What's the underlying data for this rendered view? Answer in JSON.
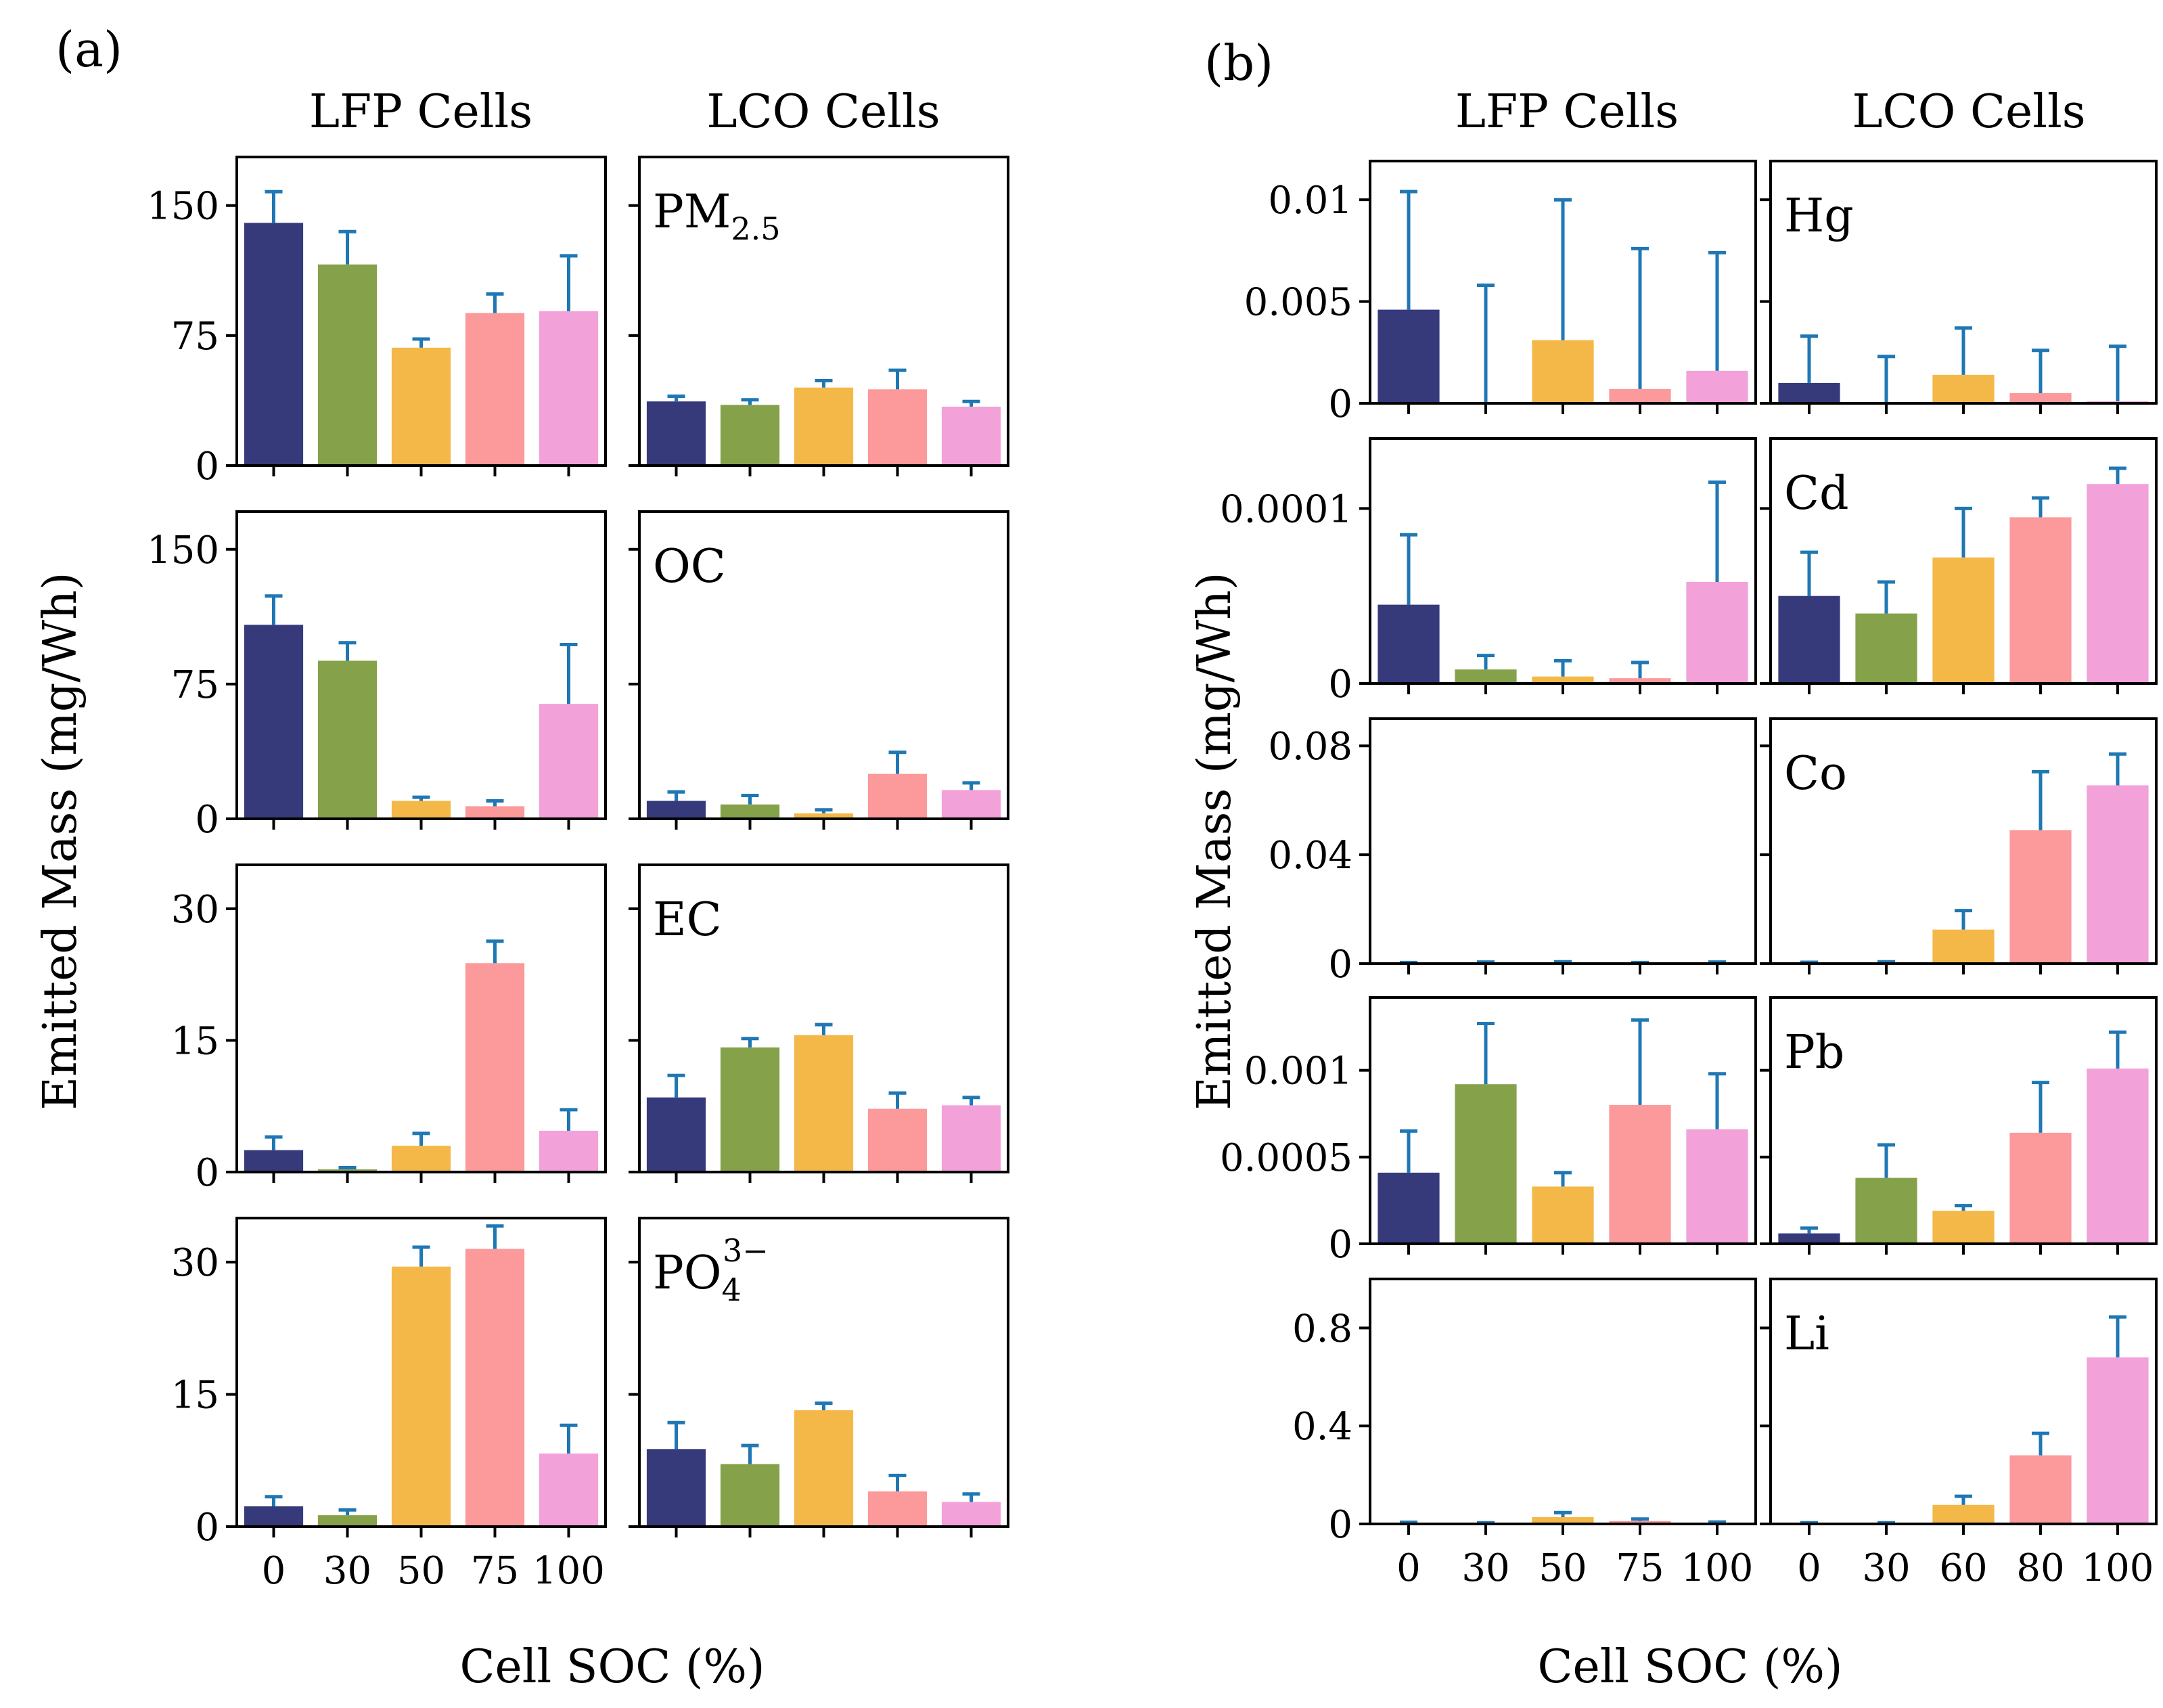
{
  "figure": {
    "panel_a_label": "(a)",
    "panel_b_label": "(b)",
    "ylabel": "Emitted Mass (mg/Wh)",
    "xlabel": "Cell SOC (%)",
    "column_titles": [
      "LFP Cells",
      "LCO Cells"
    ]
  },
  "colors": {
    "bars": [
      "#363a7b",
      "#85a24b",
      "#f4b848",
      "#fb999b",
      "#f2a1d9"
    ],
    "errorbar": "#1f77b4",
    "axis": "#000000"
  },
  "chart_data": [
    {
      "type": "bar",
      "panel": "a",
      "col": 0,
      "row": 0,
      "title": "LFP Cells",
      "ylabel": "Emitted Mass (mg/Wh)",
      "categories": [
        "0",
        "30",
        "50",
        "75",
        "100"
      ],
      "values": [
        140,
        116,
        68,
        88,
        89
      ],
      "errors": [
        18,
        19,
        5,
        11,
        32
      ],
      "ylim": [
        0,
        178
      ],
      "yticks": [
        0,
        75,
        150
      ],
      "yticklabels": [
        "0",
        "75",
        "150"
      ]
    },
    {
      "type": "bar",
      "panel": "a",
      "col": 1,
      "row": 0,
      "title": "LCO Cells",
      "annotation": "PM",
      "annotation_sub": "2.5",
      "categories": [
        "0",
        "30",
        "60",
        "80",
        "100"
      ],
      "values": [
        37,
        35,
        45,
        44,
        34
      ],
      "errors": [
        3,
        3,
        4,
        11,
        3
      ],
      "ylim": [
        0,
        178
      ],
      "yticks": [
        0,
        75,
        150
      ],
      "yticklabels": []
    },
    {
      "type": "bar",
      "panel": "a",
      "col": 0,
      "row": 1,
      "categories": [
        "0",
        "30",
        "50",
        "75",
        "100"
      ],
      "values": [
        108,
        88,
        10,
        7,
        64
      ],
      "errors": [
        16,
        10,
        2,
        3,
        33
      ],
      "ylim": [
        0,
        171
      ],
      "yticks": [
        0,
        75,
        150
      ],
      "yticklabels": [
        "0",
        "75",
        "150"
      ]
    },
    {
      "type": "bar",
      "panel": "a",
      "col": 1,
      "row": 1,
      "annotation": "OC",
      "categories": [
        "0",
        "30",
        "60",
        "80",
        "100"
      ],
      "values": [
        10,
        8,
        3,
        25,
        16
      ],
      "errors": [
        5,
        5,
        2,
        12,
        4
      ],
      "ylim": [
        0,
        171
      ],
      "yticks": [
        0,
        75,
        150
      ],
      "yticklabels": []
    },
    {
      "type": "bar",
      "panel": "a",
      "col": 0,
      "row": 2,
      "categories": [
        "0",
        "30",
        "50",
        "75",
        "100"
      ],
      "values": [
        2.5,
        0.3,
        3.0,
        23.8,
        4.7
      ],
      "errors": [
        1.5,
        0.2,
        1.4,
        2.5,
        2.4
      ],
      "ylim": [
        0,
        35
      ],
      "yticks": [
        0,
        15,
        30
      ],
      "yticklabels": [
        "0",
        "15",
        "30"
      ]
    },
    {
      "type": "bar",
      "panel": "a",
      "col": 1,
      "row": 2,
      "annotation": "EC",
      "categories": [
        "0",
        "30",
        "60",
        "80",
        "100"
      ],
      "values": [
        8.5,
        14.2,
        15.6,
        7.2,
        7.6
      ],
      "errors": [
        2.5,
        1.0,
        1.2,
        1.8,
        0.9
      ],
      "ylim": [
        0,
        35
      ],
      "yticks": [
        0,
        15,
        30
      ],
      "yticklabels": []
    },
    {
      "type": "bar",
      "panel": "a",
      "col": 0,
      "row": 3,
      "xlabel": "Cell SOC (%)",
      "categories": [
        "0",
        "30",
        "50",
        "75",
        "100"
      ],
      "values": [
        2.3,
        1.3,
        29.5,
        31.5,
        8.3
      ],
      "errors": [
        1.1,
        0.6,
        2.2,
        2.6,
        3.2
      ],
      "ylim": [
        0,
        35
      ],
      "yticks": [
        0,
        15,
        30
      ],
      "yticklabels": [
        "0",
        "15",
        "30"
      ]
    },
    {
      "type": "bar",
      "panel": "a",
      "col": 1,
      "row": 3,
      "annotation": "PO",
      "annotation_sub": "4",
      "annotation_sup": "3−",
      "categories": [
        "0",
        "30",
        "60",
        "80",
        "100"
      ],
      "values": [
        8.8,
        7.1,
        13.2,
        4.0,
        2.8
      ],
      "errors": [
        3.0,
        2.1,
        0.8,
        1.8,
        0.9
      ],
      "ylim": [
        0,
        35
      ],
      "yticks": [
        0,
        15,
        30
      ],
      "yticklabels": []
    },
    {
      "type": "bar",
      "panel": "b",
      "col": 0,
      "row": 0,
      "title": "LFP Cells",
      "ylabel": "Emitted Mass (mg/Wh)",
      "categories": [
        "0",
        "30",
        "50",
        "75",
        "100"
      ],
      "values": [
        0.0046,
        0.0,
        0.0031,
        0.0007,
        0.0016
      ],
      "errors": [
        0.0058,
        0.0058,
        0.0069,
        0.0069,
        0.0058
      ],
      "ylim": [
        0,
        0.0119
      ],
      "yticks": [
        0,
        0.005,
        0.01
      ],
      "yticklabels": [
        "0",
        "0.005",
        "0.01"
      ]
    },
    {
      "type": "bar",
      "panel": "b",
      "col": 1,
      "row": 0,
      "title": "LCO Cells",
      "annotation": "Hg",
      "categories": [
        "0",
        "30",
        "60",
        "80",
        "100"
      ],
      "values": [
        0.001,
        0.0,
        0.0014,
        0.0005,
        0.0001
      ],
      "errors": [
        0.0023,
        0.0023,
        0.0023,
        0.0021,
        0.0027
      ],
      "ylim": [
        0,
        0.0119
      ],
      "yticks": [
        0,
        0.005,
        0.01
      ],
      "yticklabels": []
    },
    {
      "type": "bar",
      "panel": "b",
      "col": 0,
      "row": 1,
      "categories": [
        "0",
        "30",
        "50",
        "75",
        "100"
      ],
      "values": [
        4.5e-05,
        8e-06,
        4e-06,
        3e-06,
        5.8e-05
      ],
      "errors": [
        4e-05,
        8e-06,
        9e-06,
        9e-06,
        5.7e-05
      ],
      "ylim": [
        0,
        0.00014
      ],
      "yticks": [
        0,
        0.0001
      ],
      "yticklabels": [
        "0",
        "0.0001"
      ]
    },
    {
      "type": "bar",
      "panel": "b",
      "col": 1,
      "row": 1,
      "annotation": "Cd",
      "categories": [
        "0",
        "30",
        "60",
        "80",
        "100"
      ],
      "values": [
        5e-05,
        4e-05,
        7.2e-05,
        9.5e-05,
        0.000114
      ],
      "errors": [
        2.5e-05,
        1.8e-05,
        2.8e-05,
        1.1e-05,
        9e-06
      ],
      "ylim": [
        0,
        0.00014
      ],
      "yticks": [
        0,
        0.0001
      ],
      "yticklabels": []
    },
    {
      "type": "bar",
      "panel": "b",
      "col": 0,
      "row": 2,
      "categories": [
        "0",
        "30",
        "50",
        "75",
        "100"
      ],
      "values": [
        0.0002,
        0.0003,
        0.0004,
        0.0002,
        0.0003
      ],
      "errors": [
        0.0002,
        0.0003,
        0.0003,
        0.0002,
        0.0003
      ],
      "ylim": [
        0,
        0.09
      ],
      "yticks": [
        0,
        0.04,
        0.08
      ],
      "yticklabels": [
        "0",
        "0.04",
        "0.08"
      ]
    },
    {
      "type": "bar",
      "panel": "b",
      "col": 1,
      "row": 2,
      "annotation": "Co",
      "categories": [
        "0",
        "30",
        "60",
        "80",
        "100"
      ],
      "values": [
        0.0002,
        0.0003,
        0.0125,
        0.049,
        0.0655
      ],
      "errors": [
        0.0003,
        0.0004,
        0.007,
        0.0215,
        0.0115
      ],
      "ylim": [
        0,
        0.09
      ],
      "yticks": [
        0,
        0.04,
        0.08
      ],
      "yticklabels": []
    },
    {
      "type": "bar",
      "panel": "b",
      "col": 0,
      "row": 3,
      "categories": [
        "0",
        "30",
        "50",
        "75",
        "100"
      ],
      "values": [
        0.00041,
        0.00092,
        0.00033,
        0.0008,
        0.00066
      ],
      "errors": [
        0.00024,
        0.00035,
        8e-05,
        0.00049,
        0.00032
      ],
      "ylim": [
        0,
        0.00142
      ],
      "yticks": [
        0,
        0.0005,
        0.001
      ],
      "yticklabels": [
        "0",
        "0.0005",
        "0.001"
      ]
    },
    {
      "type": "bar",
      "panel": "b",
      "col": 1,
      "row": 3,
      "annotation": "Pb",
      "categories": [
        "0",
        "30",
        "60",
        "80",
        "100"
      ],
      "values": [
        6e-05,
        0.00038,
        0.00019,
        0.00064,
        0.00101
      ],
      "errors": [
        3e-05,
        0.00019,
        3e-05,
        0.00029,
        0.00021
      ],
      "ylim": [
        0,
        0.00142
      ],
      "yticks": [
        0,
        0.0005,
        0.001
      ],
      "yticklabels": []
    },
    {
      "type": "bar",
      "panel": "b",
      "col": 0,
      "row": 4,
      "xlabel": "Cell SOC (%)",
      "categories": [
        "0",
        "30",
        "50",
        "75",
        "100"
      ],
      "values": [
        0.003,
        0.002,
        0.028,
        0.012,
        0.004
      ],
      "errors": [
        0.004,
        0.003,
        0.018,
        0.008,
        0.004
      ],
      "ylim": [
        0,
        1.0
      ],
      "yticks": [
        0,
        0.4,
        0.8
      ],
      "yticklabels": [
        "0",
        "0.4",
        "0.8"
      ]
    },
    {
      "type": "bar",
      "panel": "b",
      "col": 1,
      "row": 4,
      "annotation": "Li",
      "xlabel": "Cell SOC (%)",
      "categories": [
        "0",
        "30",
        "60",
        "80",
        "100"
      ],
      "values": [
        0.003,
        0.003,
        0.078,
        0.28,
        0.68
      ],
      "errors": [
        0.002,
        0.002,
        0.035,
        0.09,
        0.165
      ],
      "ylim": [
        0,
        1.0
      ],
      "yticks": [
        0,
        0.4,
        0.8
      ],
      "yticklabels": []
    }
  ]
}
